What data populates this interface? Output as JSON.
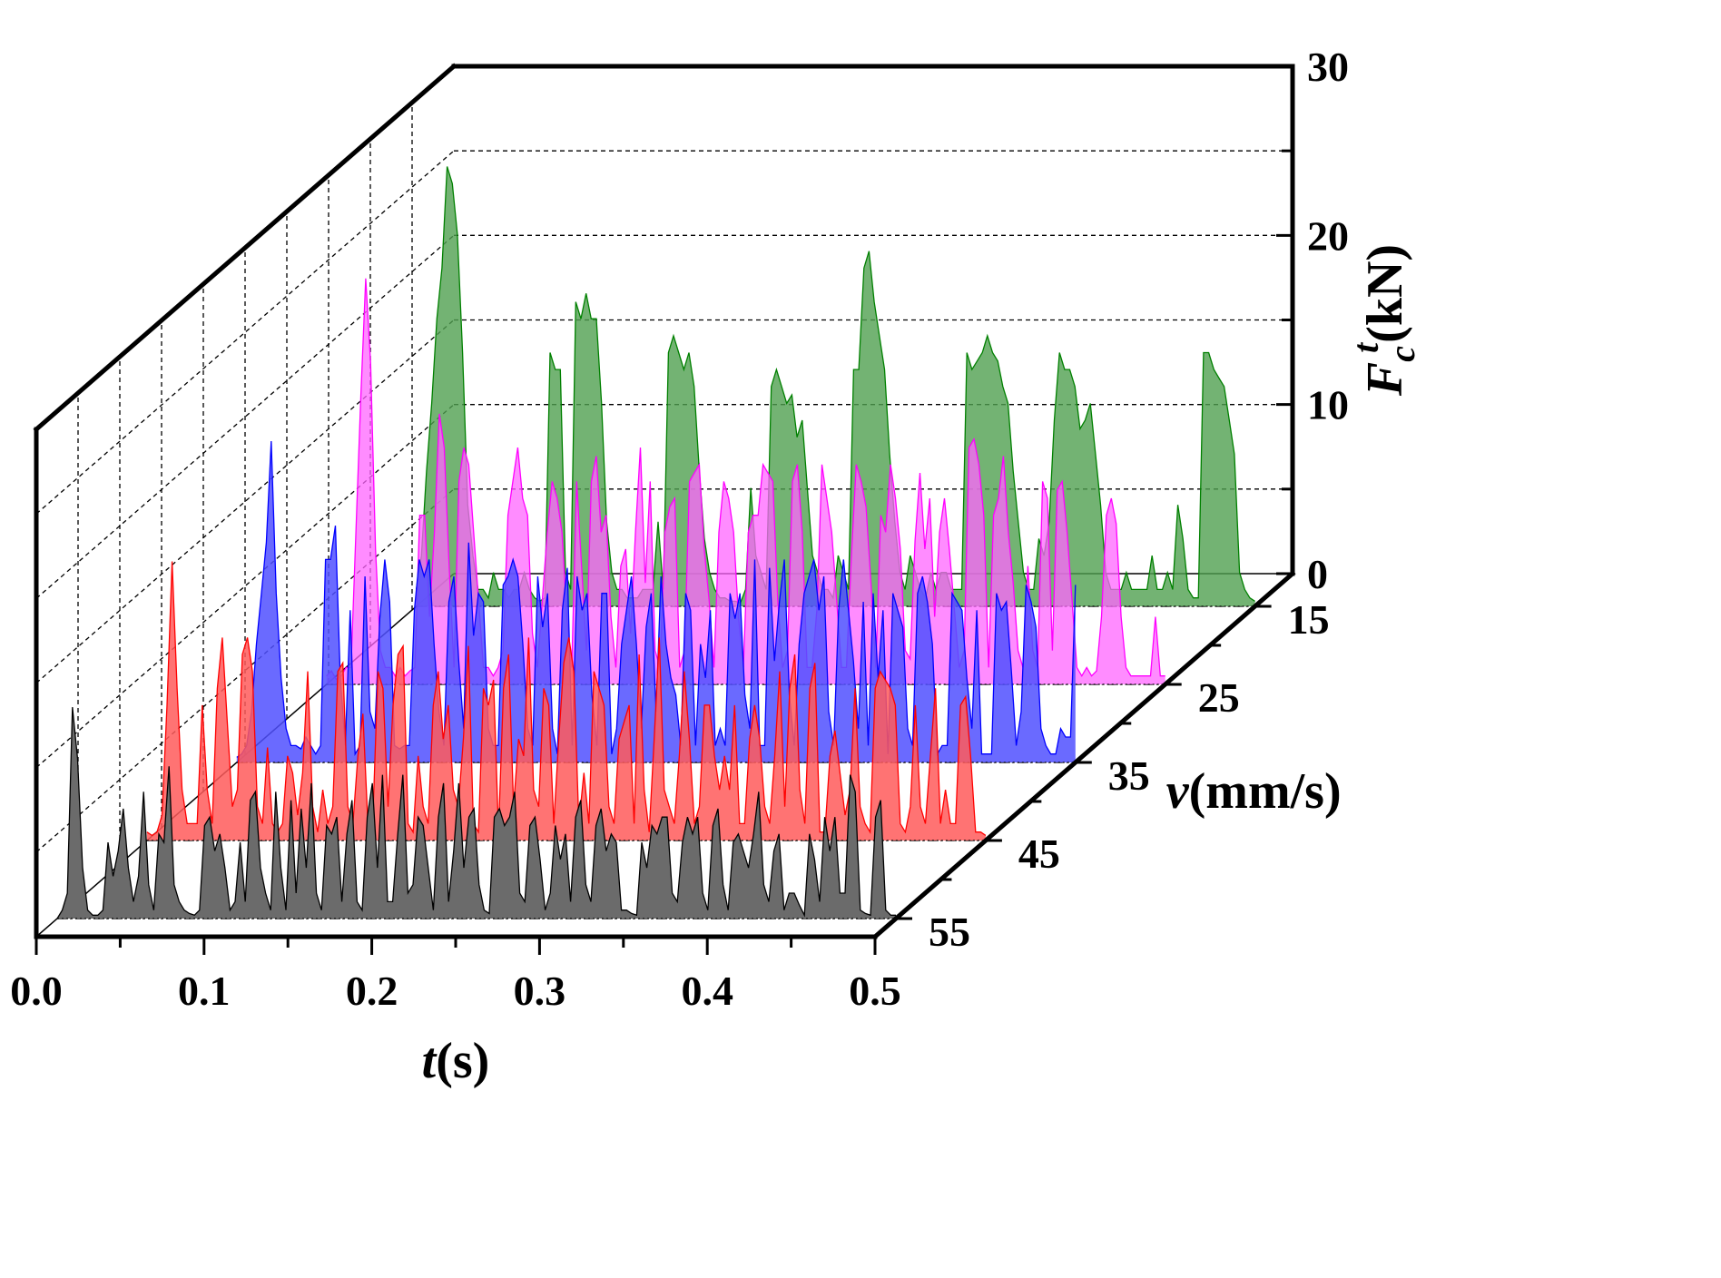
{
  "chart_data": {
    "type": "area",
    "projection": "3d-waterfall",
    "x_axis": {
      "label_var": "t",
      "label_unit": "(s)",
      "range": [
        0.0,
        0.5
      ],
      "ticks": [
        "0.0",
        "0.1",
        "0.2",
        "0.3",
        "0.4",
        "0.5"
      ]
    },
    "y_axis": {
      "label_var": "v",
      "label_unit": "(mm/s)",
      "ticks": [
        "15",
        "25",
        "35",
        "45",
        "55"
      ]
    },
    "z_axis": {
      "label_var": "F",
      "label_sub": "c",
      "label_sup": "t",
      "label_unit": "(kN)",
      "range": [
        0,
        30
      ],
      "ticks": [
        "0",
        "10",
        "20",
        "30"
      ]
    },
    "grid": "dashed",
    "series": [
      {
        "name": "55 mm/s",
        "speed": 55,
        "color": "#000000",
        "fill": "#6b6b6b",
        "fill_opacity": 1.0,
        "x_start": 0.0,
        "x_end": 0.5,
        "values": [
          0,
          0.5,
          1.5,
          12.5,
          9.5,
          3,
          0.5,
          0.2,
          0.2,
          0.5,
          4.5,
          2.5,
          4,
          6.5,
          3,
          1,
          2.5,
          7.5,
          2,
          0.5,
          5,
          4.5,
          9,
          2,
          1,
          0.5,
          0.3,
          0.2,
          0.5,
          5.5,
          6,
          4,
          5,
          3,
          0.5,
          1,
          4.5,
          1,
          7,
          7.5,
          3,
          1.5,
          0.5,
          7.5,
          3,
          0.5,
          7,
          1.5,
          6.5,
          3,
          8,
          1.5,
          0.5,
          5.5,
          5,
          6,
          1,
          5,
          7,
          1,
          0.5,
          6,
          8,
          3,
          8.5,
          1,
          1,
          5,
          8.5,
          1.5,
          2,
          6,
          5.5,
          3,
          0.5,
          6,
          8,
          1,
          4,
          8,
          3,
          6,
          6.5,
          2,
          0.5,
          0.3,
          6,
          6.5,
          5.5,
          6,
          7.5,
          1.5,
          1,
          5.5,
          6,
          3.5,
          0.5,
          1.5,
          5.5,
          3.5,
          5,
          1,
          6,
          7,
          2,
          1,
          5.5,
          6.5,
          4,
          5,
          4.5,
          0.5,
          0.5,
          0.3,
          0.2,
          4.5,
          3,
          5.5,
          5,
          6,
          6,
          1.5,
          1,
          4.5,
          6,
          5,
          6,
          1.5,
          0.5,
          5.5,
          6.5,
          2,
          0.5,
          4.5,
          5,
          4,
          3,
          5,
          7.5,
          2,
          1,
          4,
          5,
          0.5,
          1.5,
          1.5,
          0.8,
          0.2,
          5,
          3.5,
          1,
          6,
          4,
          6,
          1.5,
          1.5,
          8.5,
          7.5,
          0.5,
          0.3,
          0.2,
          6,
          7,
          0.5,
          0.2,
          0.2
        ]
      },
      {
        "name": "45 mm/s",
        "speed": 45,
        "color": "#ff0000",
        "fill": "#ff5a5a",
        "fill_opacity": 0.85,
        "x_start": 0.0,
        "x_end": 0.5,
        "values": [
          0.5,
          0.3,
          0.5,
          1.5,
          8,
          16.5,
          9,
          3,
          1,
          1,
          1,
          8,
          3,
          1,
          9,
          12,
          7,
          2,
          3,
          11,
          12,
          10,
          2,
          1,
          5.5,
          1,
          0.5,
          1,
          5,
          4,
          1.5,
          4,
          10,
          2,
          0.5,
          3,
          1,
          2,
          10,
          10.5,
          2,
          1,
          5,
          7.5,
          1,
          1.5,
          10,
          9,
          2,
          8,
          11,
          11.5,
          1,
          0.5,
          5,
          2,
          1,
          8,
          10,
          6,
          8,
          3,
          2,
          6,
          11.5,
          1,
          0.5,
          9,
          8,
          9.5,
          0.5,
          9,
          11,
          2,
          6,
          5,
          12,
          3,
          2,
          9,
          8,
          1,
          6,
          10.5,
          12,
          10,
          1,
          4,
          1,
          10,
          9,
          8,
          2,
          1,
          6,
          7,
          8,
          1,
          11,
          3,
          0.5,
          6,
          12,
          3,
          2,
          1,
          5,
          10,
          6,
          1,
          2,
          8,
          8,
          5,
          3,
          5,
          3,
          8,
          1,
          1,
          6,
          8,
          6,
          2,
          1,
          5,
          10,
          2,
          9,
          11,
          3,
          1,
          9,
          10.5,
          0.5,
          0.5,
          5,
          6.5,
          4,
          1.5,
          3,
          9,
          2,
          1,
          0.5,
          9,
          10,
          9.5,
          9,
          8,
          1,
          0.5,
          2,
          8,
          2,
          1,
          5,
          9,
          1,
          3,
          1,
          1,
          8,
          8.5,
          5,
          0.5,
          0.5,
          0.3
        ]
      },
      {
        "name": "35 mm/s",
        "speed": 35,
        "color": "#0000ff",
        "fill": "#5050ff",
        "fill_opacity": 0.85,
        "x_start": 0.0,
        "x_end": 0.5,
        "values": [
          0.3,
          0.5,
          1,
          3,
          7,
          10,
          13,
          19,
          10,
          5,
          2,
          1,
          1,
          0.8,
          1.5,
          1,
          0.5,
          1,
          12,
          12,
          14,
          5,
          1,
          9,
          0.5,
          1,
          11,
          3,
          2,
          8.5,
          12,
          9.5,
          1,
          0.8,
          1,
          1,
          9,
          12,
          11,
          12,
          7,
          3,
          1,
          9.5,
          11,
          6,
          2,
          13,
          7.5,
          10,
          9.5,
          2,
          1,
          1,
          10.5,
          11,
          12,
          11,
          7,
          2,
          1,
          11,
          8,
          10,
          2,
          0.5,
          9,
          11.5,
          1,
          11,
          9,
          10,
          4,
          1,
          10,
          10,
          0.5,
          2,
          7,
          9,
          11,
          7,
          2,
          8,
          10,
          3,
          11,
          7,
          5,
          4,
          1,
          10,
          9,
          1,
          7,
          5,
          9,
          1,
          2,
          1,
          10,
          8.5,
          10,
          4,
          2,
          12,
          1,
          1,
          11.5,
          6,
          9.5,
          12,
          4,
          1,
          7,
          10,
          11,
          12,
          9,
          11,
          3,
          1,
          9,
          12,
          9,
          6,
          2,
          9.5,
          1,
          10,
          5,
          9,
          0.5,
          10,
          9,
          8,
          2,
          1,
          10,
          11,
          9.5,
          7,
          0.5,
          1,
          1,
          10,
          9.5,
          9,
          5,
          2,
          9,
          0.5,
          0.5,
          0.5,
          10,
          9,
          9.5,
          5.5,
          1,
          3,
          10.5,
          9.5,
          8,
          2,
          1,
          0.5,
          0.5,
          2,
          1.5,
          1.5,
          10.5
        ]
      },
      {
        "name": "25 mm/s",
        "speed": 25,
        "color": "#ff00ff",
        "fill": "#ff66ff",
        "fill_opacity": 0.75,
        "x_start": 0.0,
        "x_end": 0.5,
        "values": [
          0.5,
          0.8,
          0.3,
          0.5,
          1,
          1,
          9,
          17,
          24,
          19,
          8,
          2,
          1,
          1,
          0.5,
          1,
          0.5,
          0.8,
          1,
          10,
          10,
          4,
          9,
          16,
          14,
          7,
          1,
          12,
          14,
          13,
          9,
          5,
          1,
          1,
          0.5,
          1,
          2,
          10,
          12,
          14,
          11,
          10,
          3,
          1,
          5,
          9,
          12,
          11,
          9,
          4,
          1,
          12,
          7,
          2,
          12,
          13.5,
          9,
          10,
          4,
          1,
          7,
          8,
          3,
          9,
          14,
          6,
          12,
          2,
          1,
          9,
          10.5,
          11,
          1,
          2,
          12,
          12.5,
          13,
          8,
          5,
          1,
          9,
          12,
          11,
          9,
          4,
          1,
          9,
          10,
          10,
          13,
          12.5,
          12,
          5,
          1,
          2,
          12,
          13,
          9,
          1,
          1,
          4.5,
          13,
          11,
          9,
          5,
          1,
          1,
          7.5,
          13,
          12,
          10.5,
          6,
          1,
          10,
          9,
          13,
          11,
          8,
          2,
          1.5,
          8.5,
          12.5,
          8,
          11,
          4,
          9,
          11,
          8,
          4.5,
          1,
          2,
          14,
          14.5,
          13,
          10,
          1,
          10,
          11,
          13.5,
          9,
          6,
          2,
          1,
          7,
          2,
          1,
          12,
          11,
          2,
          11.5,
          12,
          9,
          5,
          1,
          0.5,
          1,
          0.5,
          0.8,
          4,
          10,
          11,
          9.5,
          4,
          1,
          0.5,
          0.5,
          0.5,
          0.5,
          0.5,
          4,
          0.5,
          0.5
        ]
      },
      {
        "name": "15 mm/s",
        "speed": 15,
        "color": "#008000",
        "fill": "#50a050",
        "fill_opacity": 0.8,
        "x_start": 0.0,
        "x_end": 0.5,
        "values": [
          1,
          3,
          8,
          12,
          17,
          20,
          26,
          25,
          22,
          15,
          6,
          3,
          1,
          1,
          0.5,
          2,
          1,
          1,
          0.5,
          1,
          1,
          2,
          1,
          0.5,
          0.3,
          0.5,
          15,
          14,
          14,
          2,
          1,
          18,
          17,
          18.5,
          17,
          17,
          12,
          5,
          2,
          1,
          1,
          0.5,
          0.5,
          0.5,
          1,
          1,
          1,
          5,
          1,
          15,
          16,
          15,
          14,
          15,
          13,
          8,
          4,
          2,
          1,
          0.5,
          0.5,
          0.3,
          0.3,
          0.2,
          1,
          7,
          3,
          2,
          1,
          13,
          14,
          13,
          12,
          12.5,
          10,
          11,
          7,
          3,
          2,
          1,
          1,
          0.5,
          3,
          2,
          1,
          14,
          14,
          20,
          21,
          18,
          16,
          14,
          9,
          5,
          2,
          1,
          3,
          2,
          1,
          0.5,
          2,
          1,
          2,
          2,
          1,
          1,
          1,
          15,
          14,
          14.5,
          15,
          16,
          15,
          14.5,
          13,
          12,
          8,
          5,
          2,
          1,
          1,
          4,
          3,
          5,
          11,
          15,
          14,
          14,
          13,
          10.5,
          11,
          12,
          9,
          6,
          2,
          1,
          1,
          1,
          2,
          1,
          1,
          1,
          1,
          3,
          1,
          1,
          2,
          1,
          6,
          4,
          1,
          0.5,
          0.5,
          15,
          15,
          14,
          13.5,
          13,
          11,
          9,
          2,
          1,
          0.5,
          0.3
        ]
      }
    ]
  }
}
